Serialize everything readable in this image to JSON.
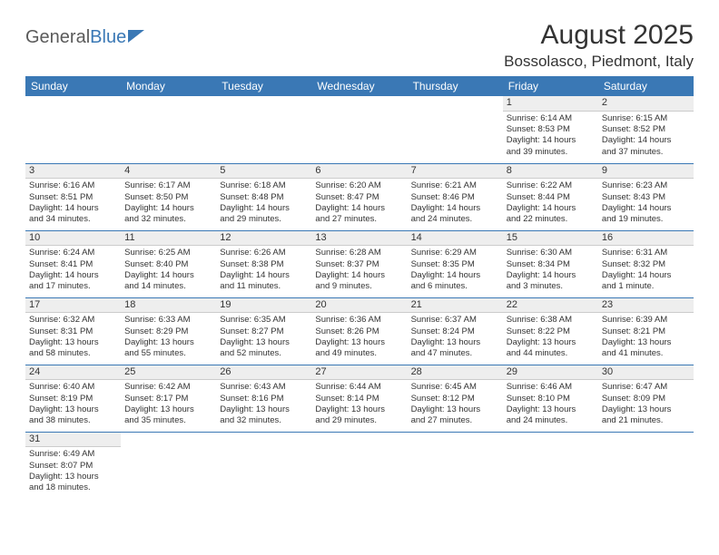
{
  "logo": {
    "part1": "General",
    "part2": "Blue"
  },
  "title": {
    "month": "August 2025",
    "location": "Bossolasco, Piedmont, Italy"
  },
  "colors": {
    "header_bg": "#3a78b5",
    "header_text": "#ffffff",
    "daynum_bg": "#eeeeee",
    "border": "#3a78b5",
    "text": "#333333",
    "logo_gray": "#5a5a5a",
    "logo_blue": "#3a78b5"
  },
  "weekdays": [
    "Sunday",
    "Monday",
    "Tuesday",
    "Wednesday",
    "Thursday",
    "Friday",
    "Saturday"
  ],
  "weeks": [
    [
      null,
      null,
      null,
      null,
      null,
      {
        "n": "1",
        "sr": "Sunrise: 6:14 AM",
        "ss": "Sunset: 8:53 PM",
        "dl1": "Daylight: 14 hours",
        "dl2": "and 39 minutes."
      },
      {
        "n": "2",
        "sr": "Sunrise: 6:15 AM",
        "ss": "Sunset: 8:52 PM",
        "dl1": "Daylight: 14 hours",
        "dl2": "and 37 minutes."
      }
    ],
    [
      {
        "n": "3",
        "sr": "Sunrise: 6:16 AM",
        "ss": "Sunset: 8:51 PM",
        "dl1": "Daylight: 14 hours",
        "dl2": "and 34 minutes."
      },
      {
        "n": "4",
        "sr": "Sunrise: 6:17 AM",
        "ss": "Sunset: 8:50 PM",
        "dl1": "Daylight: 14 hours",
        "dl2": "and 32 minutes."
      },
      {
        "n": "5",
        "sr": "Sunrise: 6:18 AM",
        "ss": "Sunset: 8:48 PM",
        "dl1": "Daylight: 14 hours",
        "dl2": "and 29 minutes."
      },
      {
        "n": "6",
        "sr": "Sunrise: 6:20 AM",
        "ss": "Sunset: 8:47 PM",
        "dl1": "Daylight: 14 hours",
        "dl2": "and 27 minutes."
      },
      {
        "n": "7",
        "sr": "Sunrise: 6:21 AM",
        "ss": "Sunset: 8:46 PM",
        "dl1": "Daylight: 14 hours",
        "dl2": "and 24 minutes."
      },
      {
        "n": "8",
        "sr": "Sunrise: 6:22 AM",
        "ss": "Sunset: 8:44 PM",
        "dl1": "Daylight: 14 hours",
        "dl2": "and 22 minutes."
      },
      {
        "n": "9",
        "sr": "Sunrise: 6:23 AM",
        "ss": "Sunset: 8:43 PM",
        "dl1": "Daylight: 14 hours",
        "dl2": "and 19 minutes."
      }
    ],
    [
      {
        "n": "10",
        "sr": "Sunrise: 6:24 AM",
        "ss": "Sunset: 8:41 PM",
        "dl1": "Daylight: 14 hours",
        "dl2": "and 17 minutes."
      },
      {
        "n": "11",
        "sr": "Sunrise: 6:25 AM",
        "ss": "Sunset: 8:40 PM",
        "dl1": "Daylight: 14 hours",
        "dl2": "and 14 minutes."
      },
      {
        "n": "12",
        "sr": "Sunrise: 6:26 AM",
        "ss": "Sunset: 8:38 PM",
        "dl1": "Daylight: 14 hours",
        "dl2": "and 11 minutes."
      },
      {
        "n": "13",
        "sr": "Sunrise: 6:28 AM",
        "ss": "Sunset: 8:37 PM",
        "dl1": "Daylight: 14 hours",
        "dl2": "and 9 minutes."
      },
      {
        "n": "14",
        "sr": "Sunrise: 6:29 AM",
        "ss": "Sunset: 8:35 PM",
        "dl1": "Daylight: 14 hours",
        "dl2": "and 6 minutes."
      },
      {
        "n": "15",
        "sr": "Sunrise: 6:30 AM",
        "ss": "Sunset: 8:34 PM",
        "dl1": "Daylight: 14 hours",
        "dl2": "and 3 minutes."
      },
      {
        "n": "16",
        "sr": "Sunrise: 6:31 AM",
        "ss": "Sunset: 8:32 PM",
        "dl1": "Daylight: 14 hours",
        "dl2": "and 1 minute."
      }
    ],
    [
      {
        "n": "17",
        "sr": "Sunrise: 6:32 AM",
        "ss": "Sunset: 8:31 PM",
        "dl1": "Daylight: 13 hours",
        "dl2": "and 58 minutes."
      },
      {
        "n": "18",
        "sr": "Sunrise: 6:33 AM",
        "ss": "Sunset: 8:29 PM",
        "dl1": "Daylight: 13 hours",
        "dl2": "and 55 minutes."
      },
      {
        "n": "19",
        "sr": "Sunrise: 6:35 AM",
        "ss": "Sunset: 8:27 PM",
        "dl1": "Daylight: 13 hours",
        "dl2": "and 52 minutes."
      },
      {
        "n": "20",
        "sr": "Sunrise: 6:36 AM",
        "ss": "Sunset: 8:26 PM",
        "dl1": "Daylight: 13 hours",
        "dl2": "and 49 minutes."
      },
      {
        "n": "21",
        "sr": "Sunrise: 6:37 AM",
        "ss": "Sunset: 8:24 PM",
        "dl1": "Daylight: 13 hours",
        "dl2": "and 47 minutes."
      },
      {
        "n": "22",
        "sr": "Sunrise: 6:38 AM",
        "ss": "Sunset: 8:22 PM",
        "dl1": "Daylight: 13 hours",
        "dl2": "and 44 minutes."
      },
      {
        "n": "23",
        "sr": "Sunrise: 6:39 AM",
        "ss": "Sunset: 8:21 PM",
        "dl1": "Daylight: 13 hours",
        "dl2": "and 41 minutes."
      }
    ],
    [
      {
        "n": "24",
        "sr": "Sunrise: 6:40 AM",
        "ss": "Sunset: 8:19 PM",
        "dl1": "Daylight: 13 hours",
        "dl2": "and 38 minutes."
      },
      {
        "n": "25",
        "sr": "Sunrise: 6:42 AM",
        "ss": "Sunset: 8:17 PM",
        "dl1": "Daylight: 13 hours",
        "dl2": "and 35 minutes."
      },
      {
        "n": "26",
        "sr": "Sunrise: 6:43 AM",
        "ss": "Sunset: 8:16 PM",
        "dl1": "Daylight: 13 hours",
        "dl2": "and 32 minutes."
      },
      {
        "n": "27",
        "sr": "Sunrise: 6:44 AM",
        "ss": "Sunset: 8:14 PM",
        "dl1": "Daylight: 13 hours",
        "dl2": "and 29 minutes."
      },
      {
        "n": "28",
        "sr": "Sunrise: 6:45 AM",
        "ss": "Sunset: 8:12 PM",
        "dl1": "Daylight: 13 hours",
        "dl2": "and 27 minutes."
      },
      {
        "n": "29",
        "sr": "Sunrise: 6:46 AM",
        "ss": "Sunset: 8:10 PM",
        "dl1": "Daylight: 13 hours",
        "dl2": "and 24 minutes."
      },
      {
        "n": "30",
        "sr": "Sunrise: 6:47 AM",
        "ss": "Sunset: 8:09 PM",
        "dl1": "Daylight: 13 hours",
        "dl2": "and 21 minutes."
      }
    ],
    [
      {
        "n": "31",
        "sr": "Sunrise: 6:49 AM",
        "ss": "Sunset: 8:07 PM",
        "dl1": "Daylight: 13 hours",
        "dl2": "and 18 minutes."
      },
      null,
      null,
      null,
      null,
      null,
      null
    ]
  ]
}
